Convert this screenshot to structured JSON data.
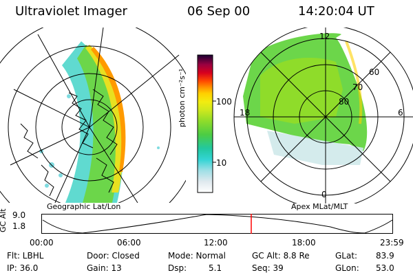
{
  "header": {
    "instrument": "Ultraviolet Imager",
    "date": "06 Sep 00",
    "time": "14:20:04 UT"
  },
  "panels": {
    "left_caption": "Geographic Lat/Lon",
    "right_caption": "Apex MLat/MLT",
    "right_labels": {
      "mlt": [
        "12",
        "18",
        "6",
        "0"
      ],
      "mlat": [
        "60",
        "70",
        "80"
      ]
    }
  },
  "colorbar": {
    "label": "photon cm⁻²s⁻¹",
    "ticks": [
      "100",
      "10"
    ],
    "colors": [
      "#ffffff",
      "#dfe9ee",
      "#bfe3ea",
      "#7fdbe0",
      "#33d4d4",
      "#22c8a0",
      "#4ccc44",
      "#8fdc2a",
      "#cfe81e",
      "#f2ec10",
      "#ffd000",
      "#ff9a00",
      "#ff4a00",
      "#d8001e",
      "#9a0040",
      "#4c0066",
      "#1a0033"
    ]
  },
  "timeline": {
    "axis_label": "GC Alt",
    "y_ticks": [
      "9.0",
      "1.8"
    ],
    "x_ticks": [
      "00:00",
      "06:00",
      "12:00",
      "18:00",
      "23:59"
    ],
    "current_time_color": "#ff0000"
  },
  "info": {
    "flt": "Flt: LBHL",
    "ip": "IP: 36.0",
    "door": "Door: Closed",
    "gain": "Gain: 13",
    "mode": "Mode: Normal",
    "dsp_label": "Dsp:",
    "dsp_value": "5.1",
    "gcalt": "GC Alt: 8.8 Re",
    "seq": "Seq: 39",
    "glat_label": "GLat:",
    "glat_value": "83.9",
    "glon_label": "GLon:",
    "glon_value": "53.0"
  }
}
